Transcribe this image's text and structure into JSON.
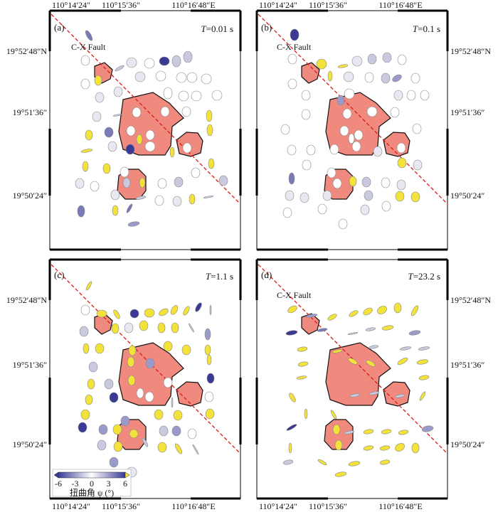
{
  "colors": {
    "source_fill": "#f08a7f",
    "fault_line": "#e01818",
    "near_zero": "#ffffff",
    "negative_max": "#3a3a96",
    "positive_max": "#f2e23a"
  },
  "chart_data": {
    "type": "scatter",
    "x_ticks": [
      "110°14′24″",
      "110°15′36″",
      "110°16′48″E"
    ],
    "y_ticks": [
      "19°52′48″N",
      "19°51′36″",
      "19°50′24″"
    ],
    "fault_label": "C-X Fault",
    "colorbar": {
      "label": "扭曲角 ψ (°)",
      "ticks": [
        "-6",
        "-3",
        "0",
        "3",
        "6"
      ],
      "range": [
        -6,
        6
      ]
    },
    "panels": [
      {
        "id": "a",
        "label": "(a)",
        "time_prefix": "T",
        "time_value": "=0.01 s"
      },
      {
        "id": "b",
        "label": "(b)",
        "time_prefix": "T",
        "time_value": "=0.1 s"
      },
      {
        "id": "c",
        "label": "(c)",
        "time_prefix": "T",
        "time_value": "=1.1 s"
      },
      {
        "id": "d",
        "label": "(d)",
        "time_prefix": "T",
        "time_value": "=23.2 s"
      }
    ]
  }
}
